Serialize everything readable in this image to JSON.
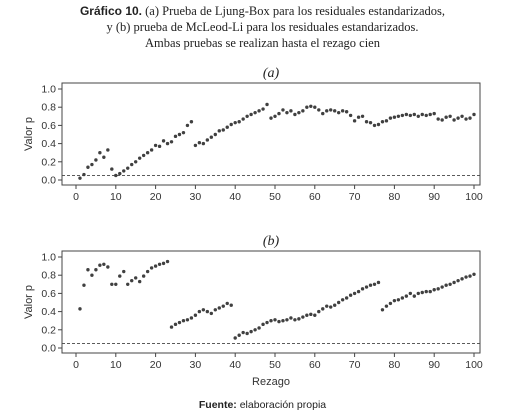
{
  "caption": {
    "label": "Gráfico 10.",
    "line1": "(a) Prueba de Ljung-Box para los residuales estandarizados,",
    "line2": "y (b) prueba de McLeod-Li para los residuales estandarizados.",
    "line3": "Ambas pruebas se realizan hasta el rezago cien"
  },
  "source": {
    "label": "Fuente:",
    "text": "elaboración propia"
  },
  "chart_data": [
    {
      "type": "scatter",
      "panel": "(a)",
      "title": "(a)",
      "xlabel": "",
      "ylabel": "Valor p",
      "xlim": [
        0,
        100
      ],
      "ylim": [
        0,
        1
      ],
      "xticks": [
        0,
        10,
        20,
        30,
        40,
        50,
        60,
        70,
        80,
        90,
        100
      ],
      "yticks": [
        0.0,
        0.2,
        0.4,
        0.6,
        0.8,
        1.0
      ],
      "reference_line": {
        "y": 0.05,
        "style": "dashed"
      },
      "grid": false,
      "marker_color": "#404040",
      "x": [
        1,
        2,
        3,
        4,
        5,
        6,
        7,
        8,
        9,
        10,
        11,
        12,
        13,
        14,
        15,
        16,
        17,
        18,
        19,
        20,
        21,
        22,
        23,
        24,
        25,
        26,
        27,
        28,
        29,
        30,
        31,
        32,
        33,
        34,
        35,
        36,
        37,
        38,
        39,
        40,
        41,
        42,
        43,
        44,
        45,
        46,
        47,
        48,
        49,
        50,
        51,
        52,
        53,
        54,
        55,
        56,
        57,
        58,
        59,
        60,
        61,
        62,
        63,
        64,
        65,
        66,
        67,
        68,
        69,
        70,
        71,
        72,
        73,
        74,
        75,
        76,
        77,
        78,
        79,
        80,
        81,
        82,
        83,
        84,
        85,
        86,
        87,
        88,
        89,
        90,
        91,
        92,
        93,
        94,
        95,
        96,
        97,
        98,
        99,
        100
      ],
      "y": [
        0.02,
        0.06,
        0.14,
        0.17,
        0.22,
        0.3,
        0.25,
        0.33,
        0.12,
        0.05,
        0.07,
        0.1,
        0.13,
        0.17,
        0.2,
        0.24,
        0.27,
        0.3,
        0.33,
        0.38,
        0.37,
        0.43,
        0.4,
        0.42,
        0.48,
        0.5,
        0.52,
        0.6,
        0.64,
        0.38,
        0.41,
        0.4,
        0.44,
        0.47,
        0.5,
        0.54,
        0.55,
        0.58,
        0.61,
        0.63,
        0.64,
        0.67,
        0.7,
        0.72,
        0.74,
        0.76,
        0.78,
        0.83,
        0.68,
        0.7,
        0.73,
        0.77,
        0.74,
        0.76,
        0.72,
        0.74,
        0.76,
        0.8,
        0.81,
        0.8,
        0.77,
        0.73,
        0.76,
        0.77,
        0.76,
        0.74,
        0.76,
        0.75,
        0.71,
        0.65,
        0.69,
        0.7,
        0.64,
        0.63,
        0.6,
        0.61,
        0.64,
        0.65,
        0.68,
        0.69,
        0.7,
        0.71,
        0.72,
        0.71,
        0.72,
        0.7,
        0.72,
        0.71,
        0.72,
        0.73,
        0.67,
        0.66,
        0.69,
        0.7,
        0.66,
        0.68,
        0.7,
        0.67,
        0.68,
        0.72
      ]
    },
    {
      "type": "scatter",
      "panel": "(b)",
      "title": "(b)",
      "xlabel": "Rezago",
      "ylabel": "Valor p",
      "xlim": [
        0,
        100
      ],
      "ylim": [
        0,
        1
      ],
      "xticks": [
        0,
        10,
        20,
        30,
        40,
        50,
        60,
        70,
        80,
        90,
        100
      ],
      "yticks": [
        0.0,
        0.2,
        0.4,
        0.6,
        0.8,
        1.0
      ],
      "reference_line": {
        "y": 0.05,
        "style": "dashed"
      },
      "grid": false,
      "marker_color": "#404040",
      "x": [
        1,
        2,
        3,
        4,
        5,
        6,
        7,
        8,
        9,
        10,
        11,
        12,
        13,
        14,
        15,
        16,
        17,
        18,
        19,
        20,
        21,
        22,
        23,
        24,
        25,
        26,
        27,
        28,
        29,
        30,
        31,
        32,
        33,
        34,
        35,
        36,
        37,
        38,
        39,
        40,
        41,
        42,
        43,
        44,
        45,
        46,
        47,
        48,
        49,
        50,
        51,
        52,
        53,
        54,
        55,
        56,
        57,
        58,
        59,
        60,
        61,
        62,
        63,
        64,
        65,
        66,
        67,
        68,
        69,
        70,
        71,
        72,
        73,
        74,
        75,
        76,
        77,
        78,
        79,
        80,
        81,
        82,
        83,
        84,
        85,
        86,
        87,
        88,
        89,
        90,
        91,
        92,
        93,
        94,
        95,
        96,
        97,
        98,
        99,
        100
      ],
      "y": [
        0.43,
        0.69,
        0.86,
        0.8,
        0.86,
        0.91,
        0.92,
        0.89,
        0.7,
        0.7,
        0.79,
        0.84,
        0.7,
        0.74,
        0.77,
        0.73,
        0.79,
        0.84,
        0.88,
        0.9,
        0.92,
        0.93,
        0.95,
        0.23,
        0.26,
        0.28,
        0.3,
        0.31,
        0.33,
        0.36,
        0.4,
        0.42,
        0.4,
        0.38,
        0.42,
        0.44,
        0.46,
        0.49,
        0.47,
        0.11,
        0.14,
        0.17,
        0.16,
        0.18,
        0.2,
        0.22,
        0.26,
        0.28,
        0.3,
        0.31,
        0.29,
        0.3,
        0.31,
        0.33,
        0.31,
        0.32,
        0.34,
        0.36,
        0.37,
        0.36,
        0.4,
        0.43,
        0.46,
        0.45,
        0.47,
        0.5,
        0.53,
        0.55,
        0.58,
        0.6,
        0.62,
        0.65,
        0.67,
        0.69,
        0.7,
        0.72,
        0.42,
        0.46,
        0.49,
        0.52,
        0.53,
        0.55,
        0.57,
        0.6,
        0.57,
        0.6,
        0.61,
        0.62,
        0.62,
        0.64,
        0.65,
        0.67,
        0.69,
        0.7,
        0.72,
        0.74,
        0.76,
        0.78,
        0.79,
        0.81
      ]
    }
  ]
}
